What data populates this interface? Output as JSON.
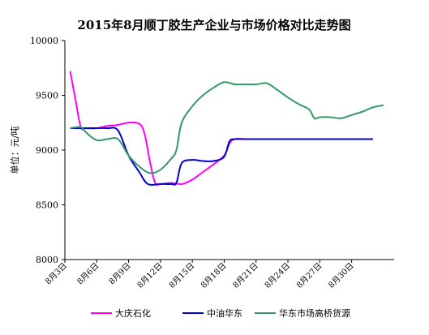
{
  "chart_data": {
    "type": "line",
    "title": "2015年8月顺丁胶生产企业与市场价格对比走势图",
    "ylabel": "单位：元/吨",
    "xlabel": "",
    "ylim": [
      8000,
      10000
    ],
    "yticks": [
      "8000",
      "8500",
      "9000",
      "9500",
      "10000"
    ],
    "xlim": [
      3,
      34
    ],
    "xticks": [
      {
        "x": 3,
        "label": "8月3日"
      },
      {
        "x": 6,
        "label": "8月6日"
      },
      {
        "x": 9,
        "label": "8月9日"
      },
      {
        "x": 12,
        "label": "8月12日"
      },
      {
        "x": 15,
        "label": "8月15日"
      },
      {
        "x": 18,
        "label": "8月18日"
      },
      {
        "x": 21,
        "label": "8月21日"
      },
      {
        "x": 24,
        "label": "8月24日"
      },
      {
        "x": 27,
        "label": "8月27日"
      },
      {
        "x": 30,
        "label": "8月30日"
      }
    ],
    "grid": false,
    "legend_position": "bottom",
    "series": [
      {
        "name": "大庆石化",
        "color": "#ff00ff",
        "points": [
          [
            3.5,
            9720
          ],
          [
            4,
            9460
          ],
          [
            4.5,
            9210
          ],
          [
            5,
            9200
          ],
          [
            6,
            9200
          ],
          [
            7,
            9220
          ],
          [
            8,
            9230
          ],
          [
            9,
            9250
          ],
          [
            10,
            9240
          ],
          [
            10.5,
            9150
          ],
          [
            11,
            8900
          ],
          [
            11.5,
            8700
          ],
          [
            12,
            8690
          ],
          [
            13,
            8700
          ],
          [
            14,
            8690
          ],
          [
            15,
            8730
          ],
          [
            16,
            8800
          ],
          [
            17,
            8870
          ],
          [
            18,
            8950
          ],
          [
            18.5,
            9060
          ],
          [
            19,
            9100
          ],
          [
            20,
            9100
          ],
          [
            22,
            9100
          ],
          [
            25,
            9100
          ],
          [
            28,
            9100
          ],
          [
            30,
            9100
          ],
          [
            32,
            9100
          ]
        ]
      },
      {
        "name": "中油华东",
        "color": "#0000cc",
        "points": [
          [
            3.5,
            9200
          ],
          [
            4,
            9200
          ],
          [
            5,
            9200
          ],
          [
            6,
            9200
          ],
          [
            7,
            9200
          ],
          [
            8,
            9180
          ],
          [
            9,
            8950
          ],
          [
            10,
            8800
          ],
          [
            10.8,
            8690
          ],
          [
            12,
            8690
          ],
          [
            13,
            8690
          ],
          [
            13.5,
            8700
          ],
          [
            14,
            8880
          ],
          [
            15,
            8910
          ],
          [
            16,
            8900
          ],
          [
            17,
            8900
          ],
          [
            18,
            8940
          ],
          [
            18.5,
            9080
          ],
          [
            19,
            9100
          ],
          [
            20,
            9100
          ],
          [
            22,
            9100
          ],
          [
            25,
            9100
          ],
          [
            28,
            9100
          ],
          [
            30,
            9100
          ],
          [
            32,
            9100
          ]
        ]
      },
      {
        "name": "华东市场高桥货源",
        "color": "#339966",
        "points": [
          [
            3.5,
            9200
          ],
          [
            4.5,
            9210
          ],
          [
            5,
            9160
          ],
          [
            6,
            9090
          ],
          [
            7,
            9100
          ],
          [
            8,
            9100
          ],
          [
            9,
            8950
          ],
          [
            10,
            8850
          ],
          [
            11,
            8790
          ],
          [
            12,
            8820
          ],
          [
            13,
            8920
          ],
          [
            13.5,
            9000
          ],
          [
            14,
            9250
          ],
          [
            15,
            9400
          ],
          [
            16,
            9500
          ],
          [
            17,
            9570
          ],
          [
            18,
            9620
          ],
          [
            19,
            9600
          ],
          [
            20,
            9600
          ],
          [
            21,
            9600
          ],
          [
            22,
            9610
          ],
          [
            23,
            9550
          ],
          [
            24,
            9480
          ],
          [
            25,
            9420
          ],
          [
            26,
            9370
          ],
          [
            26.5,
            9290
          ],
          [
            27,
            9300
          ],
          [
            28,
            9300
          ],
          [
            29,
            9290
          ],
          [
            30,
            9320
          ],
          [
            31,
            9350
          ],
          [
            32,
            9390
          ],
          [
            33,
            9410
          ]
        ]
      }
    ]
  }
}
